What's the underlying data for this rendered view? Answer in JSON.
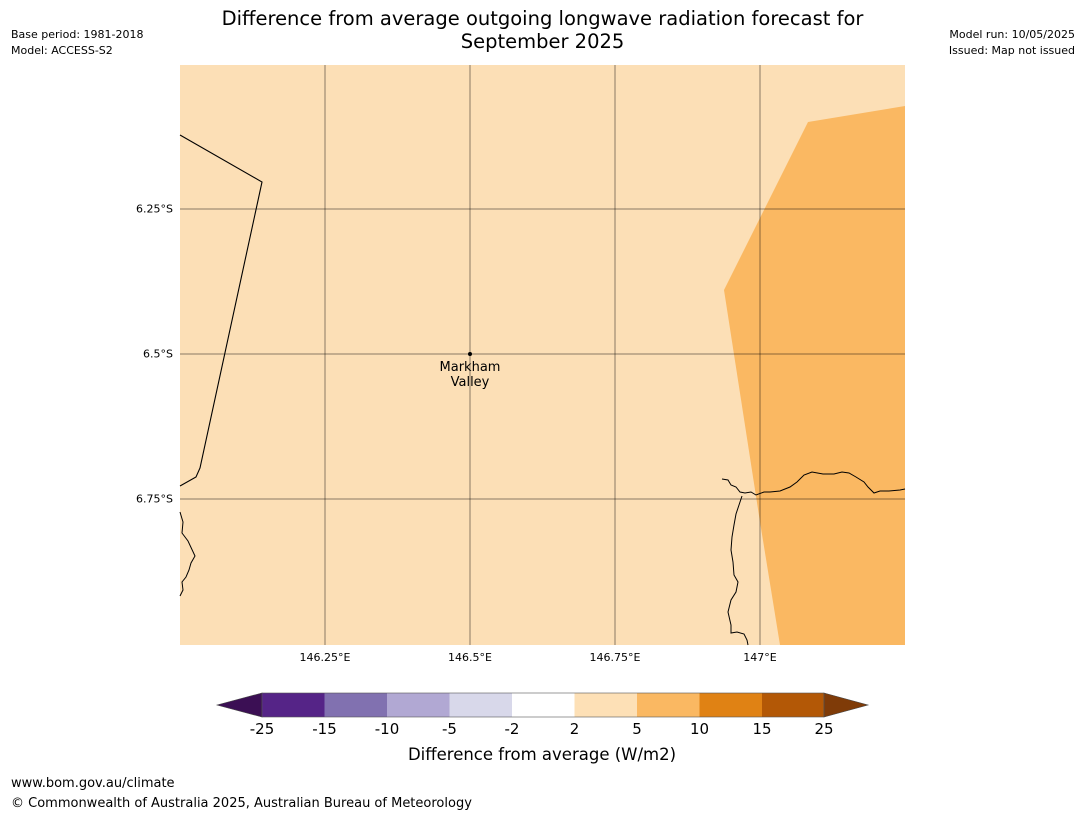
{
  "header": {
    "title_line1": "Difference from average outgoing longwave radiation forecast for",
    "title_line2": "September 2025",
    "base_period": "Base period: 1981-2018",
    "model": "Model: ACCESS-S2",
    "model_run": "Model run: 10/05/2025",
    "issued": "Issued: Map not issued"
  },
  "map": {
    "background_color": "#fcdfb6",
    "anomaly_color": "#fab862",
    "lat_labels": [
      "6.25°S",
      "6.5°S",
      "6.75°S"
    ],
    "lon_labels": [
      "146.25°E",
      "146.5°E",
      "146.75°E",
      "147°E"
    ],
    "place": {
      "name_line1": "Markham",
      "name_line2": "Valley"
    }
  },
  "colorbar": {
    "label": "Difference from average (W/m2)",
    "ticks": [
      "-25",
      "-15",
      "-10",
      "-5",
      "-2",
      "2",
      "5",
      "10",
      "15",
      "25"
    ],
    "colors": [
      "#3b0f54",
      "#552487",
      "#8171b0",
      "#b1a8d3",
      "#d8d8ea",
      "#ffffff",
      "#fde0b6",
      "#fab862",
      "#e08214",
      "#b35806",
      "#7f3b08"
    ]
  },
  "footer": {
    "website": "www.bom.gov.au/climate",
    "copyright": "© Commonwealth of Australia 2025, Australian Bureau of Meteorology"
  }
}
